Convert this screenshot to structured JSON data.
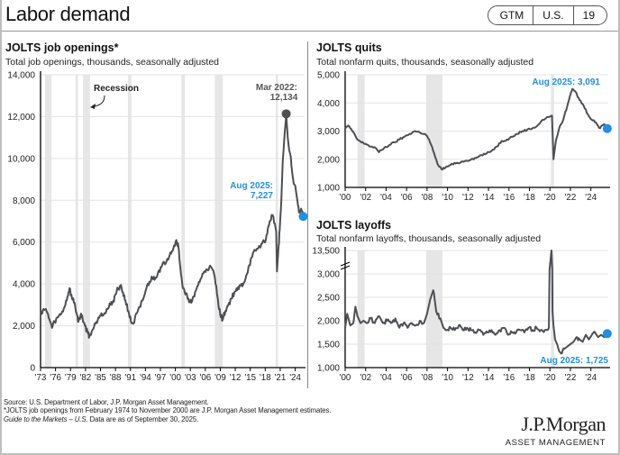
{
  "header": {
    "title": "Labor demand",
    "badge": [
      "GTM",
      "U.S.",
      "19"
    ]
  },
  "colors": {
    "line": "#4d4f53",
    "accent": "#1f8fe6",
    "recession": "#e6e6e6",
    "grid": "#e3e3e3"
  },
  "footer": {
    "source": "Source: U.S. Department of Labor, J.P. Morgan Asset Management.",
    "note": "*JOLTS job openings from February 1974 to November 2000 are J.P. Morgan Asset Management estimates.",
    "guide_italic": "Guide to the Markets – U.S.",
    "guide_rest": " Data are as of September 30, 2025."
  },
  "logo": {
    "name": "J.P.Morgan",
    "sub": "ASSET MANAGEMENT"
  },
  "chart_data": [
    {
      "id": "openings",
      "type": "line",
      "title": "JOLTS job openings*",
      "subtitle": "Total job openings, thousands, seasonally adjusted",
      "xlim": [
        1973,
        2025.7
      ],
      "ylim": [
        0,
        14000
      ],
      "yticks": [
        0,
        2000,
        4000,
        6000,
        8000,
        10000,
        12000,
        14000
      ],
      "ytick_labels": [
        "0",
        "2,000",
        "4,000",
        "6,000",
        "8,000",
        "10,000",
        "12,000",
        "14,000"
      ],
      "xticks": [
        1973,
        1976,
        1979,
        1982,
        1985,
        1988,
        1991,
        1994,
        1997,
        2000,
        2003,
        2006,
        2009,
        2012,
        2015,
        2018,
        2021,
        2024
      ],
      "xtick_labels": [
        "'73",
        "'76",
        "'79",
        "'82",
        "'85",
        "'88",
        "'91",
        "'94",
        "'97",
        "'00",
        "'03",
        "'06",
        "'09",
        "'12",
        "'15",
        "'18",
        "'21",
        "'24"
      ],
      "recessions": [
        [
          1973.9,
          1975.2
        ],
        [
          1980.0,
          1980.5
        ],
        [
          1981.5,
          1982.9
        ],
        [
          1990.5,
          1991.2
        ],
        [
          2001.2,
          2001.9
        ],
        [
          2007.9,
          2009.5
        ],
        [
          2020.1,
          2020.4
        ]
      ],
      "recession_label": "Recession",
      "series": [
        {
          "name": "Job openings",
          "x": [
            1973.0,
            1973.6,
            1974.2,
            1974.8,
            1975.3,
            1975.8,
            1976.5,
            1977.2,
            1977.8,
            1978.4,
            1978.8,
            1979.3,
            1979.8,
            1980.2,
            1980.6,
            1981.0,
            1981.4,
            1981.9,
            1982.4,
            1982.8,
            1983.4,
            1984.0,
            1984.6,
            1985.2,
            1985.8,
            1986.4,
            1987.0,
            1987.6,
            1988.0,
            1988.5,
            1989.0,
            1989.5,
            1990.0,
            1990.6,
            1991.1,
            1991.6,
            1992.3,
            1993.0,
            1993.6,
            1994.2,
            1994.8,
            1995.4,
            1996.0,
            1996.6,
            1997.2,
            1997.8,
            1998.4,
            1999.0,
            1999.6,
            2000.2,
            2000.6,
            2001.0,
            2001.5,
            2002.0,
            2002.6,
            2003.2,
            2003.8,
            2004.4,
            2005.0,
            2005.6,
            2006.2,
            2006.8,
            2007.4,
            2007.9,
            2008.5,
            2009.0,
            2009.5,
            2010.0,
            2010.6,
            2011.2,
            2011.8,
            2012.4,
            2013.0,
            2013.6,
            2014.2,
            2014.8,
            2015.4,
            2016.0,
            2016.6,
            2017.2,
            2017.8,
            2018.4,
            2018.9,
            2019.4,
            2019.9,
            2020.2,
            2020.35,
            2020.6,
            2020.9,
            2021.2,
            2021.5,
            2021.8,
            2022.0,
            2022.2,
            2022.5,
            2022.8,
            2023.1,
            2023.4,
            2023.7,
            2024.0,
            2024.3,
            2024.6,
            2024.9,
            2025.2,
            2025.6
          ],
          "y": [
            2600,
            2800,
            2700,
            2300,
            1900,
            2200,
            2400,
            2600,
            2900,
            3400,
            3800,
            3300,
            3100,
            2600,
            2200,
            2500,
            2400,
            2000,
            1700,
            1500,
            1800,
            2100,
            2400,
            2600,
            2600,
            2800,
            3000,
            3200,
            3500,
            3800,
            3900,
            3600,
            3200,
            2700,
            2200,
            2100,
            2600,
            2900,
            3300,
            3800,
            4100,
            4300,
            4300,
            4600,
            4800,
            5000,
            5200,
            5500,
            5700,
            6100,
            5800,
            4800,
            3800,
            3500,
            3300,
            3100,
            3400,
            3900,
            4200,
            4500,
            4700,
            4800,
            4700,
            4300,
            3300,
            2500,
            2300,
            2700,
            3000,
            3300,
            3600,
            3700,
            3900,
            4000,
            4400,
            4900,
            5300,
            5600,
            5700,
            5900,
            6000,
            6400,
            7000,
            7300,
            6900,
            6500,
            4600,
            5500,
            6600,
            7900,
            9800,
            10900,
            11500,
            12134,
            11000,
            10400,
            10100,
            9300,
            8800,
            8700,
            8200,
            7700,
            7400,
            7600,
            7227
          ]
        }
      ],
      "annotations": [
        {
          "label": "Mar 2022:",
          "value": "12,134",
          "x": 2022.2,
          "y": 12134
        },
        {
          "label": "Aug 2025:",
          "value": "7,227",
          "x": 2025.6,
          "y": 7227
        }
      ]
    },
    {
      "id": "quits",
      "type": "line",
      "title": "JOLTS quits",
      "subtitle": "Total nonfarm quits, thousands, seasonally adjusted",
      "xlim": [
        2000,
        2025.7
      ],
      "ylim": [
        1000,
        5000
      ],
      "yticks": [
        1000,
        2000,
        3000,
        4000,
        5000
      ],
      "ytick_labels": [
        "1,000",
        "2,000",
        "3,000",
        "4,000",
        "5,000"
      ],
      "xticks": [
        2000,
        2002,
        2004,
        2006,
        2008,
        2010,
        2012,
        2014,
        2016,
        2018,
        2020,
        2022,
        2024
      ],
      "xtick_labels": [
        "'00",
        "'02",
        "'04",
        "'06",
        "'08",
        "'10",
        "'12",
        "'14",
        "'16",
        "'18",
        "'20",
        "'22",
        "'24"
      ],
      "recessions": [
        [
          2001.2,
          2001.9
        ],
        [
          2007.9,
          2009.5
        ],
        [
          2020.1,
          2020.4
        ]
      ],
      "series": [
        {
          "name": "Quits",
          "x": [
            2000.0,
            2000.3,
            2000.7,
            2001.2,
            2001.6,
            2002.0,
            2002.5,
            2003.0,
            2003.3,
            2003.8,
            2004.3,
            2004.8,
            2005.3,
            2005.8,
            2006.3,
            2006.8,
            2007.3,
            2007.8,
            2008.2,
            2008.6,
            2009.0,
            2009.4,
            2009.8,
            2010.3,
            2010.8,
            2011.3,
            2011.8,
            2012.3,
            2012.8,
            2013.3,
            2013.8,
            2014.3,
            2014.8,
            2015.3,
            2015.8,
            2016.3,
            2016.8,
            2017.3,
            2017.8,
            2018.3,
            2018.8,
            2019.3,
            2019.9,
            2020.2,
            2020.35,
            2020.6,
            2020.9,
            2021.3,
            2021.7,
            2022.0,
            2022.2,
            2022.5,
            2022.9,
            2023.3,
            2023.7,
            2024.1,
            2024.5,
            2024.9,
            2025.3,
            2025.6
          ],
          "y": [
            3100,
            3200,
            3000,
            2700,
            2600,
            2550,
            2450,
            2400,
            2250,
            2400,
            2500,
            2600,
            2700,
            2800,
            2900,
            3000,
            2950,
            2900,
            2700,
            2300,
            1850,
            1650,
            1700,
            1800,
            1850,
            1900,
            1950,
            2000,
            2050,
            2150,
            2200,
            2300,
            2450,
            2650,
            2700,
            2800,
            2900,
            3000,
            3050,
            3100,
            3200,
            3400,
            3500,
            3550,
            2000,
            2700,
            3100,
            3400,
            3900,
            4300,
            4500,
            4400,
            4100,
            3900,
            3600,
            3400,
            3300,
            3100,
            3250,
            3091
          ]
        }
      ],
      "annotations": [
        {
          "label": "Aug 2025:",
          "value": "3,091",
          "x": 2025.6,
          "y": 3091
        }
      ]
    },
    {
      "id": "layoffs",
      "type": "line",
      "title": "JOLTS layoffs",
      "subtitle": "Total nonfarm layoffs, thousands, seasonally adjusted",
      "xlim": [
        2000,
        2025.7
      ],
      "ylim": [
        1000,
        13500
      ],
      "axis_break": {
        "from": 3000,
        "to": 13500
      },
      "yticks": [
        1000,
        1500,
        2000,
        2500,
        3000,
        13500
      ],
      "ytick_labels": [
        "1,000",
        "1,500",
        "2,000",
        "2,500",
        "3,000",
        "13,500"
      ],
      "xticks": [
        2000,
        2002,
        2004,
        2006,
        2008,
        2010,
        2012,
        2014,
        2016,
        2018,
        2020,
        2022,
        2024
      ],
      "xtick_labels": [
        "'00",
        "'02",
        "'04",
        "'06",
        "'08",
        "'10",
        "'12",
        "'14",
        "'16",
        "'18",
        "'20",
        "'22",
        "'24"
      ],
      "recessions": [
        [
          2001.2,
          2001.9
        ],
        [
          2007.9,
          2009.5
        ],
        [
          2020.1,
          2020.4
        ]
      ],
      "series": [
        {
          "name": "Layoffs",
          "x": [
            2000.0,
            2000.2,
            2000.5,
            2000.8,
            2001.0,
            2001.2,
            2001.5,
            2001.8,
            2002.1,
            2002.5,
            2002.9,
            2003.3,
            2003.7,
            2004.1,
            2004.5,
            2004.9,
            2005.3,
            2005.7,
            2006.1,
            2006.5,
            2006.9,
            2007.3,
            2007.7,
            2008.0,
            2008.3,
            2008.6,
            2008.9,
            2009.3,
            2009.6,
            2009.9,
            2010.3,
            2010.7,
            2011.1,
            2011.5,
            2011.9,
            2012.3,
            2012.7,
            2013.1,
            2013.5,
            2013.9,
            2014.3,
            2014.7,
            2015.1,
            2015.5,
            2015.9,
            2016.3,
            2016.7,
            2017.1,
            2017.5,
            2017.9,
            2018.3,
            2018.7,
            2019.1,
            2019.5,
            2019.9,
            2020.15,
            2020.25,
            2020.35,
            2020.5,
            2020.7,
            2020.9,
            2021.1,
            2021.4,
            2021.7,
            2022.0,
            2022.3,
            2022.6,
            2022.9,
            2023.2,
            2023.5,
            2023.8,
            2024.1,
            2024.4,
            2024.7,
            2025.0,
            2025.3,
            2025.6
          ],
          "y": [
            1850,
            2150,
            1900,
            1950,
            2300,
            2100,
            1950,
            2000,
            1950,
            2050,
            1950,
            2100,
            1950,
            2000,
            1950,
            2050,
            1850,
            1950,
            1850,
            1950,
            1900,
            2000,
            1950,
            2150,
            2450,
            2650,
            2200,
            2050,
            1850,
            1800,
            1850,
            1800,
            1900,
            1800,
            1850,
            1800,
            1750,
            1800,
            1700,
            1750,
            1800,
            1700,
            1800,
            1850,
            1700,
            1750,
            1750,
            1800,
            1750,
            1850,
            1800,
            1850,
            1800,
            1800,
            1850,
            13500,
            2200,
            1900,
            1600,
            1500,
            1350,
            1300,
            1400,
            1450,
            1500,
            1550,
            1650,
            1600,
            1550,
            1700,
            1600,
            1700,
            1750,
            1650,
            1700,
            1650,
            1725
          ]
        }
      ],
      "annotations": [
        {
          "label": "Aug 2025:",
          "value": "1,725",
          "x": 2025.6,
          "y": 1725
        }
      ]
    }
  ]
}
